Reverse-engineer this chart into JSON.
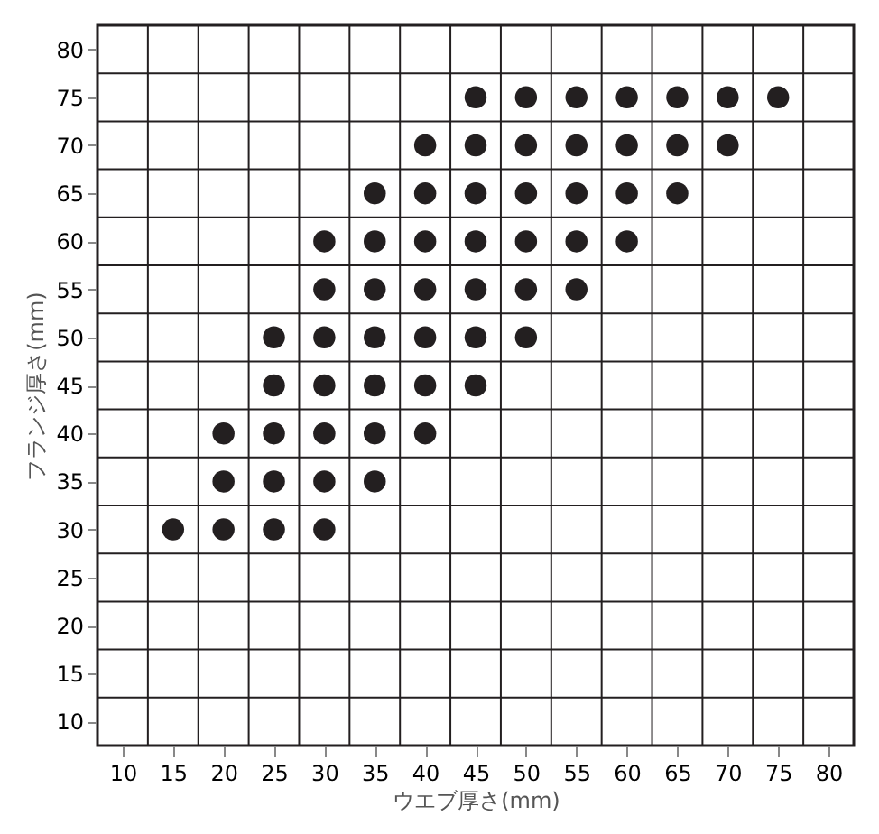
{
  "chart_data": {
    "type": "scatter",
    "xlabel": "ウエブ厚さ(mm)",
    "ylabel": "フランジ厚さ(mm)",
    "xlim": [
      7.5,
      82.5
    ],
    "ylim": [
      7.5,
      82.5
    ],
    "xticks": [
      10,
      15,
      20,
      25,
      30,
      35,
      40,
      45,
      50,
      55,
      60,
      65,
      70,
      75,
      80
    ],
    "yticks": [
      10,
      15,
      20,
      25,
      30,
      35,
      40,
      45,
      50,
      55,
      60,
      65,
      70,
      75,
      80
    ],
    "grid": true,
    "marker": "circle",
    "series": [
      {
        "color": "#231f20",
        "x": [
          45,
          50,
          55,
          60,
          65,
          70,
          75,
          40,
          45,
          50,
          55,
          60,
          65,
          70,
          35,
          40,
          45,
          50,
          55,
          60,
          65,
          30,
          35,
          40,
          45,
          50,
          55,
          60,
          30,
          35,
          40,
          45,
          50,
          55,
          25,
          30,
          35,
          40,
          45,
          50,
          25,
          30,
          35,
          40,
          45,
          20,
          25,
          30,
          35,
          40,
          20,
          25,
          30,
          35,
          15,
          20,
          25,
          30
        ],
        "values": [
          75,
          75,
          75,
          75,
          75,
          75,
          75,
          70,
          70,
          70,
          70,
          70,
          70,
          70,
          65,
          65,
          65,
          65,
          65,
          65,
          65,
          60,
          60,
          60,
          60,
          60,
          60,
          60,
          55,
          55,
          55,
          55,
          55,
          55,
          50,
          50,
          50,
          50,
          50,
          50,
          45,
          45,
          45,
          45,
          45,
          40,
          40,
          40,
          40,
          40,
          35,
          35,
          35,
          35,
          30,
          30,
          30,
          30
        ]
      }
    ]
  }
}
